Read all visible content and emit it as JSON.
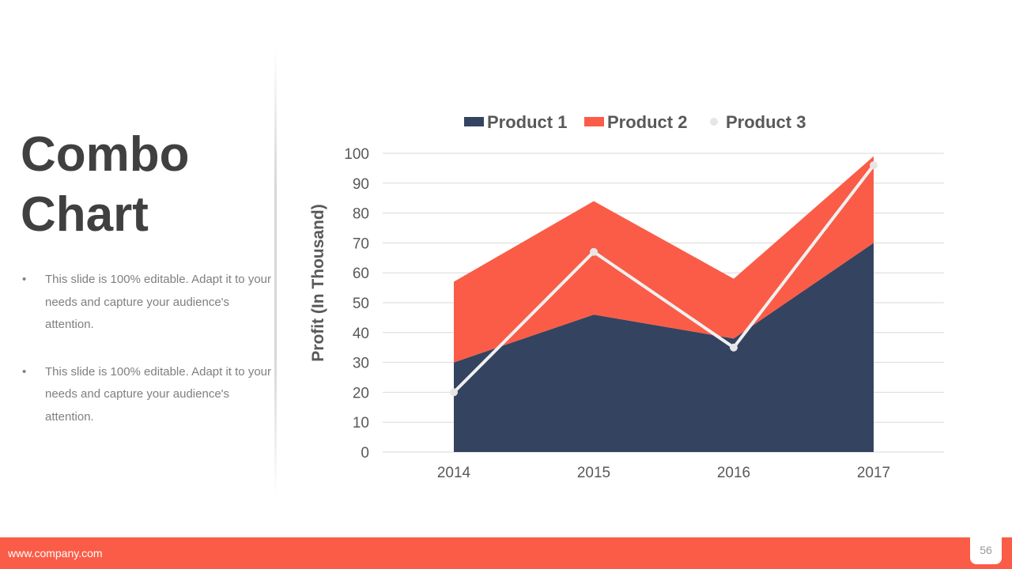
{
  "slide": {
    "title_line1": "Combo",
    "title_line2": "Chart",
    "bullets": [
      "This slide is 100% editable. Adapt it to your needs and capture your audience's attention.",
      "This slide is 100% editable. Adapt it to your needs and capture your audience's attention."
    ],
    "footer_url": "www.company.com",
    "page_number": "56"
  },
  "chart_data": {
    "type": "area",
    "stacked": true,
    "categories": [
      "2014",
      "2015",
      "2016",
      "2017"
    ],
    "ylabel": "Profit (In Thousand)",
    "xlabel": "",
    "ylim": [
      0,
      100
    ],
    "yticks": [
      "0",
      "10",
      "20",
      "30",
      "40",
      "50",
      "60",
      "70",
      "80",
      "90",
      "100"
    ],
    "grid": true,
    "legend_position": "top",
    "series": [
      {
        "name": "Product 1",
        "kind": "area",
        "color": "#344360",
        "values": [
          30,
          46,
          38,
          70
        ]
      },
      {
        "name": "Product 2",
        "kind": "area",
        "color": "#fa5c47",
        "values": [
          27,
          38,
          20,
          29
        ]
      },
      {
        "name": "Product 3",
        "kind": "line",
        "color": "#f0f0f0",
        "values": [
          20,
          67,
          35,
          96
        ]
      }
    ]
  }
}
